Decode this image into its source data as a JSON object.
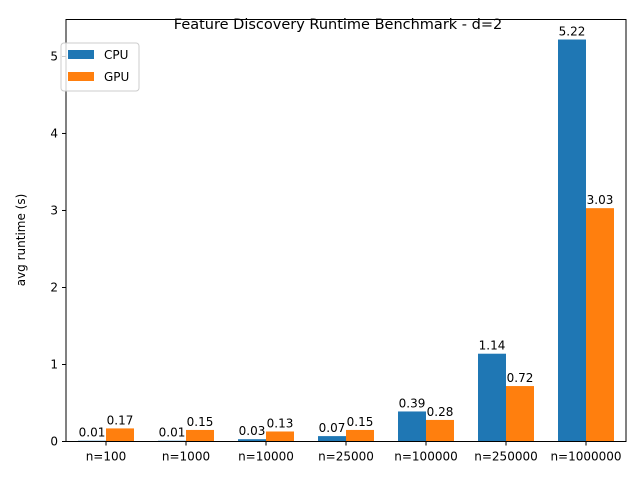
{
  "chart_data": {
    "type": "bar",
    "title": "Feature Discovery Runtime Benchmark - d=2",
    "xlabel": "",
    "ylabel": "avg runtime (s)",
    "categories": [
      "n=100",
      "n=1000",
      "n=10000",
      "n=25000",
      "n=100000",
      "n=250000",
      "n=1000000"
    ],
    "series": [
      {
        "name": "CPU",
        "color": "#1f77b4",
        "values": [
          0.01,
          0.01,
          0.03,
          0.07,
          0.39,
          1.14,
          5.22
        ],
        "labels": [
          "0.01",
          "0.01",
          "0.03",
          "0.07",
          "0.39",
          "1.14",
          "5.22"
        ]
      },
      {
        "name": "GPU",
        "color": "#ff7f0e",
        "values": [
          0.17,
          0.15,
          0.13,
          0.15,
          0.28,
          0.72,
          3.03
        ],
        "labels": [
          "0.17",
          "0.15",
          "0.13",
          "0.15",
          "0.28",
          "0.72",
          "3.03"
        ]
      }
    ],
    "ylim": [
      0,
      5.48
    ],
    "yticks": [
      0,
      1,
      2,
      3,
      4,
      5
    ],
    "grid": false,
    "legend_position": "top-left"
  }
}
